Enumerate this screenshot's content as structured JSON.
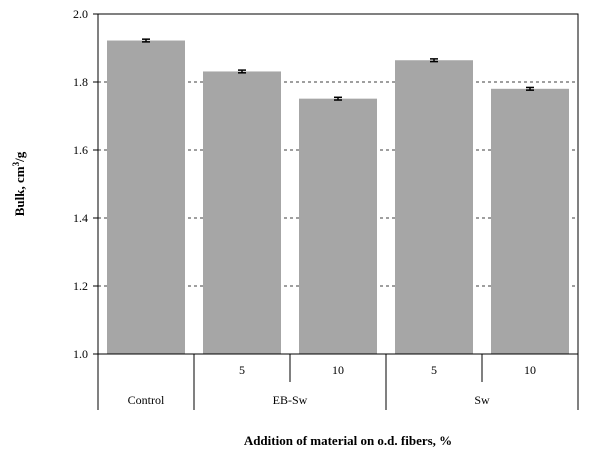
{
  "chart_data": {
    "type": "bar",
    "ylabel_main": "Bulk, cm",
    "ylabel_sup": "3",
    "ylabel_tail": "/g",
    "xlabel": "Addition of material on o.d. fibers, %",
    "ylim": [
      1.0,
      2.0
    ],
    "yticks": [
      "1.0",
      "1.2",
      "1.4",
      "1.6",
      "1.8",
      "2.0"
    ],
    "grid": "horizontal-dashed",
    "bar_color": "#a6a6a6",
    "categories": [
      {
        "group": "Control",
        "level": ""
      },
      {
        "group": "EB-Sw",
        "level": "5"
      },
      {
        "group": "EB-Sw",
        "level": "10"
      },
      {
        "group": "Sw",
        "level": "5"
      },
      {
        "group": "Sw",
        "level": "10"
      }
    ],
    "level_labels": [
      "5",
      "10",
      "5",
      "10"
    ],
    "group_labels": [
      "Control",
      "EB-Sw",
      "Sw"
    ],
    "values": [
      1.922,
      1.831,
      1.751,
      1.864,
      1.78
    ],
    "errors": [
      0.004,
      0.004,
      0.004,
      0.004,
      0.004
    ]
  }
}
